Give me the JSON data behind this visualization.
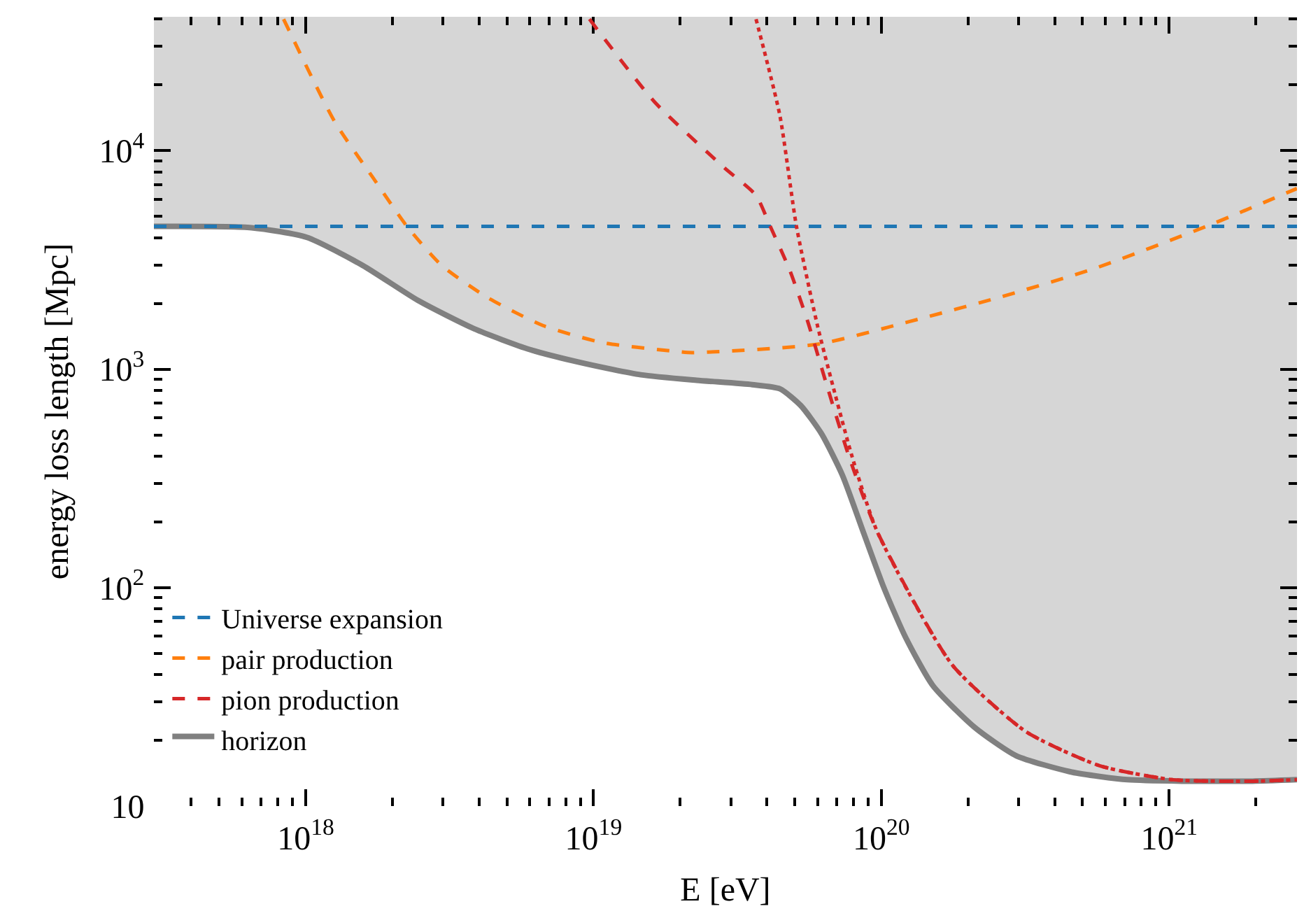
{
  "chart_data": {
    "type": "line",
    "xlabel": "E [eV]",
    "ylabel": "energy loss length [Mpc]",
    "log": "xy",
    "grid": false,
    "legend": "bottom left",
    "xlim": [
      2.97e+17,
      2.78e+21
    ],
    "ylim": [
      10,
      41000
    ],
    "xticks": [
      {
        "value": 1e+18,
        "label": "10$^{18}$"
      },
      {
        "value": 1e+19,
        "label": "10$^{19}$"
      },
      {
        "value": 1e+20,
        "label": "10$^{20}$"
      },
      {
        "value": 1e+21,
        "label": "10$^{21}$"
      },
      {
        "value": 3e+17,
        "label": null
      },
      {
        "value": 4e+17,
        "label": null
      },
      {
        "value": 5e+17,
        "label": null
      },
      {
        "value": 6e+17,
        "label": null
      },
      {
        "value": 7e+17,
        "label": null
      },
      {
        "value": 8e+17,
        "label": null
      },
      {
        "value": 9e+17,
        "label": null
      },
      {
        "value": 2e+18,
        "label": null
      },
      {
        "value": 3e+18,
        "label": null
      },
      {
        "value": 4e+18,
        "label": null
      },
      {
        "value": 5e+18,
        "label": null
      },
      {
        "value": 6e+18,
        "label": null
      },
      {
        "value": 7e+18,
        "label": null
      },
      {
        "value": 8e+18,
        "label": null
      },
      {
        "value": 9e+18,
        "label": null
      },
      {
        "value": 2e+19,
        "label": null
      },
      {
        "value": 3e+19,
        "label": null
      },
      {
        "value": 4e+19,
        "label": null
      },
      {
        "value": 5e+19,
        "label": null
      },
      {
        "value": 6e+19,
        "label": null
      },
      {
        "value": 7e+19,
        "label": null
      },
      {
        "value": 8e+19,
        "label": null
      },
      {
        "value": 9e+19,
        "label": null
      },
      {
        "value": 2e+20,
        "label": null
      },
      {
        "value": 3e+20,
        "label": null
      },
      {
        "value": 4e+20,
        "label": null
      },
      {
        "value": 5e+20,
        "label": null
      },
      {
        "value": 6e+20,
        "label": null
      },
      {
        "value": 7e+20,
        "label": null
      },
      {
        "value": 8e+20,
        "label": null
      },
      {
        "value": 9e+20,
        "label": null
      },
      {
        "value": 2e+21,
        "label": null
      }
    ],
    "yticks": [
      10,
      {
        "value": 100,
        "label": "10$^{2}$"
      },
      {
        "value": 1000,
        "label": "10$^{3}$"
      },
      {
        "value": 10000,
        "label": "10$^{4}$"
      },
      {
        "value": 20,
        "label": null
      },
      {
        "value": 30,
        "label": null
      },
      {
        "value": 40,
        "label": null
      },
      {
        "value": 50,
        "label": null
      },
      {
        "value": 60,
        "label": null
      },
      {
        "value": 70,
        "label": null
      },
      {
        "value": 80,
        "label": null
      },
      {
        "value": 90,
        "label": null
      },
      {
        "value": 200,
        "label": null
      },
      {
        "value": 300,
        "label": null
      },
      {
        "value": 400,
        "label": null
      },
      {
        "value": 500,
        "label": null
      },
      {
        "value": 600,
        "label": null
      },
      {
        "value": 700,
        "label": null
      },
      {
        "value": 800,
        "label": null
      },
      {
        "value": 900,
        "label": null
      },
      {
        "value": 2000,
        "label": null
      },
      {
        "value": 3000,
        "label": null
      },
      {
        "value": 4000,
        "label": null
      },
      {
        "value": 5000,
        "label": null
      },
      {
        "value": 6000,
        "label": null
      },
      {
        "value": 7000,
        "label": null
      },
      {
        "value": 8000,
        "label": null
      },
      {
        "value": 9000,
        "label": null
      },
      {
        "value": 20000,
        "label": null
      },
      {
        "value": 30000,
        "label": null
      },
      {
        "value": 40000,
        "label": null
      }
    ],
    "bands": [
      {
        "axis": "y",
        "from": 10,
        "to": 41000,
        "color": "#d6d6d6"
      }
    ],
    "series": [
      {
        "name": "Universe expansion",
        "color": "#1f77b4",
        "line_style": "dashed",
        "x": [
          2.97e+17,
          2.78e+21
        ],
        "values": [
          4500,
          4500
        ]
      },
      {
        "name": "pair production",
        "color": "#ff7f0e",
        "line_style": "dashed",
        "x": [
          8.38e+17,
          1.26e+18,
          1.71e+18,
          2.25e+18,
          2.97e+18,
          4.3e+18,
          6.7e+18,
          1.08e+19,
          1.88e+19,
          2.2e+19,
          6e+19,
          1.25e+20,
          2.63e+20,
          5.55e+20,
          1.35e+21,
          2.78e+21
        ],
        "values": [
          40000,
          13600,
          7550,
          4500,
          2980,
          2120,
          1580,
          1320,
          1210,
          1190,
          1300,
          1650,
          2150,
          2900,
          4510,
          6710
        ]
      },
      {
        "name": "pion production",
        "color": "#d62728",
        "line_style": "dashed",
        "x": [
          9.68e+18,
          1.63e+19,
          2.84e+19,
          3.67e+19,
          4.11e+19,
          4.8e+19,
          5.55e+19,
          6.41e+19,
          7.74e+19,
          9.68e+19,
          1.76e+20,
          3.18e+20,
          5.73e+20,
          1.03e+21,
          1.95e+21,
          2.78e+21
        ],
        "values": [
          40000,
          16700,
          8380,
          6240,
          4510,
          2850,
          1650,
          875,
          394,
          180,
          44.4,
          21.9,
          15.3,
          13.2,
          13.0,
          13.2
        ]
      },
      {
        "color": "#d62728",
        "line_style": "dotted",
        "x": [
          3.67e+19,
          4.44e+19,
          5.07e+19,
          6e+19,
          6.93e+19,
          7.93e+19,
          9.68e+19,
          1.76e+20,
          3.18e+20,
          5.73e+20,
          1.03e+21,
          1.95e+21,
          2.78e+21
        ],
        "values": [
          40000,
          14500,
          4510,
          1580,
          755,
          394,
          180,
          44.4,
          21.9,
          15.3,
          13.2,
          13.0,
          13.2
        ]
      },
      {
        "name": "horizon",
        "type": "area",
        "color": "#808080",
        "line_style": "solid",
        "x": [
          2.97e+17,
          6.49e+17,
          1.01e+18,
          1.58e+18,
          2.46e+18,
          3.85e+18,
          6e+18,
          9.35e+18,
          1.46e+19,
          2.28e+19,
          3.56e+19,
          4.44e+19,
          5.25e+19,
          6.19e+19,
          7.33e+19,
          8.65e+19,
          1.02e+20,
          1.21e+20,
          1.51e+20,
          2.11e+20,
          2.94e+20,
          4.59e+20,
          7.16e+20,
          1.12e+21,
          1.95e+21,
          2.78e+21
        ],
        "values": [
          4500,
          4440,
          4010,
          2980,
          2060,
          1530,
          1230,
          1060,
          942,
          889,
          849,
          813,
          681,
          507,
          326,
          180,
          100,
          59.7,
          35.6,
          22.9,
          17.0,
          14.3,
          13.2,
          13.0,
          13.0,
          13.2
        ]
      }
    ]
  }
}
